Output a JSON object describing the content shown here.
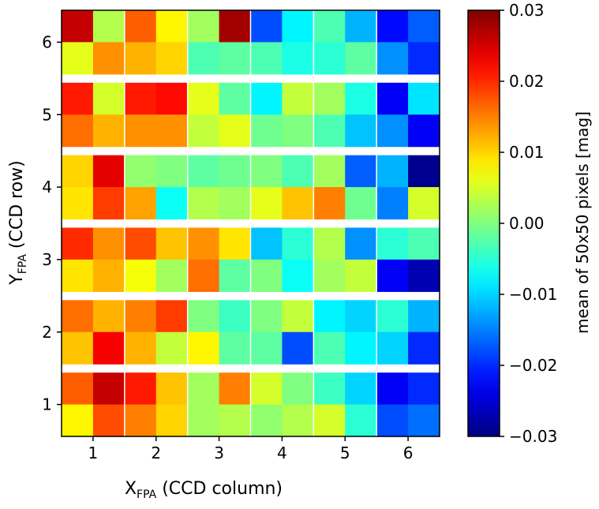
{
  "chart_data": {
    "type": "heatmap",
    "title": "",
    "xlabel": {
      "main": "X",
      "sub": "FPA",
      "rest": " (CCD column)"
    },
    "ylabel": {
      "main": "Y",
      "sub": "FPA",
      "rest": " (CCD row)"
    },
    "xlim": [
      0.5,
      6.5
    ],
    "ylim": [
      0.5,
      6.5
    ],
    "xticks": [
      1,
      2,
      3,
      4,
      5,
      6
    ],
    "yticks": [
      1,
      2,
      3,
      4,
      5,
      6
    ],
    "grid": "white lines between CCD halves; white gaps between CCD rows",
    "sub_rows_per_ccd": 2,
    "sub_cols_per_ccd": 2,
    "colorbar": {
      "label": "mean of 50x50 pixels [mag]",
      "vmin": -0.03,
      "vmax": 0.03,
      "ticks": [
        0.03,
        0.02,
        0.01,
        0.0,
        -0.01,
        -0.02,
        -0.03
      ],
      "tick_labels": [
        "0.03",
        "0.02",
        "0.01",
        "0.00",
        "−0.01",
        "−0.02",
        "−0.03"
      ],
      "colormap": "jet"
    },
    "rows_top_to_bottom": [
      [
        0.026,
        0.003,
        0.017,
        0.008,
        0.002,
        0.028,
        -0.018,
        -0.008,
        -0.003,
        -0.012,
        -0.022,
        -0.017
      ],
      [
        0.006,
        0.014,
        0.012,
        0.01,
        -0.003,
        -0.002,
        -0.003,
        -0.006,
        -0.005,
        -0.002,
        -0.014,
        -0.02
      ],
      [
        0.021,
        0.005,
        0.021,
        0.022,
        0.006,
        -0.002,
        -0.008,
        0.004,
        0.002,
        -0.006,
        -0.023,
        -0.009
      ],
      [
        0.016,
        0.012,
        0.014,
        0.014,
        0.004,
        0.006,
        -0.001,
        0.0,
        -0.003,
        -0.011,
        -0.014,
        -0.023
      ],
      [
        0.01,
        0.024,
        0.001,
        0.0,
        -0.002,
        -0.001,
        0.0,
        -0.003,
        0.002,
        -0.017,
        -0.012,
        -0.029
      ],
      [
        0.009,
        0.019,
        0.013,
        -0.007,
        0.003,
        0.002,
        0.006,
        0.011,
        0.015,
        -0.001,
        -0.015,
        0.005
      ],
      [
        0.02,
        0.014,
        0.018,
        0.011,
        0.014,
        0.009,
        -0.011,
        -0.005,
        0.003,
        -0.014,
        -0.005,
        -0.003
      ],
      [
        0.009,
        0.012,
        0.007,
        0.002,
        0.016,
        -0.002,
        0.0,
        -0.007,
        0.002,
        0.004,
        -0.023,
        -0.027
      ],
      [
        0.016,
        0.012,
        0.015,
        0.019,
        0.0,
        -0.004,
        0.0,
        0.004,
        -0.008,
        -0.01,
        -0.005,
        -0.012
      ],
      [
        0.011,
        0.023,
        0.012,
        0.004,
        0.008,
        -0.002,
        -0.002,
        -0.018,
        -0.003,
        -0.008,
        -0.01,
        -0.02
      ],
      [
        0.017,
        0.026,
        0.021,
        0.011,
        0.002,
        0.015,
        0.005,
        0.0,
        -0.004,
        -0.01,
        -0.023,
        -0.02
      ],
      [
        0.008,
        0.018,
        0.015,
        0.01,
        0.002,
        0.003,
        0.001,
        0.003,
        0.005,
        -0.005,
        -0.018,
        -0.016
      ]
    ]
  }
}
